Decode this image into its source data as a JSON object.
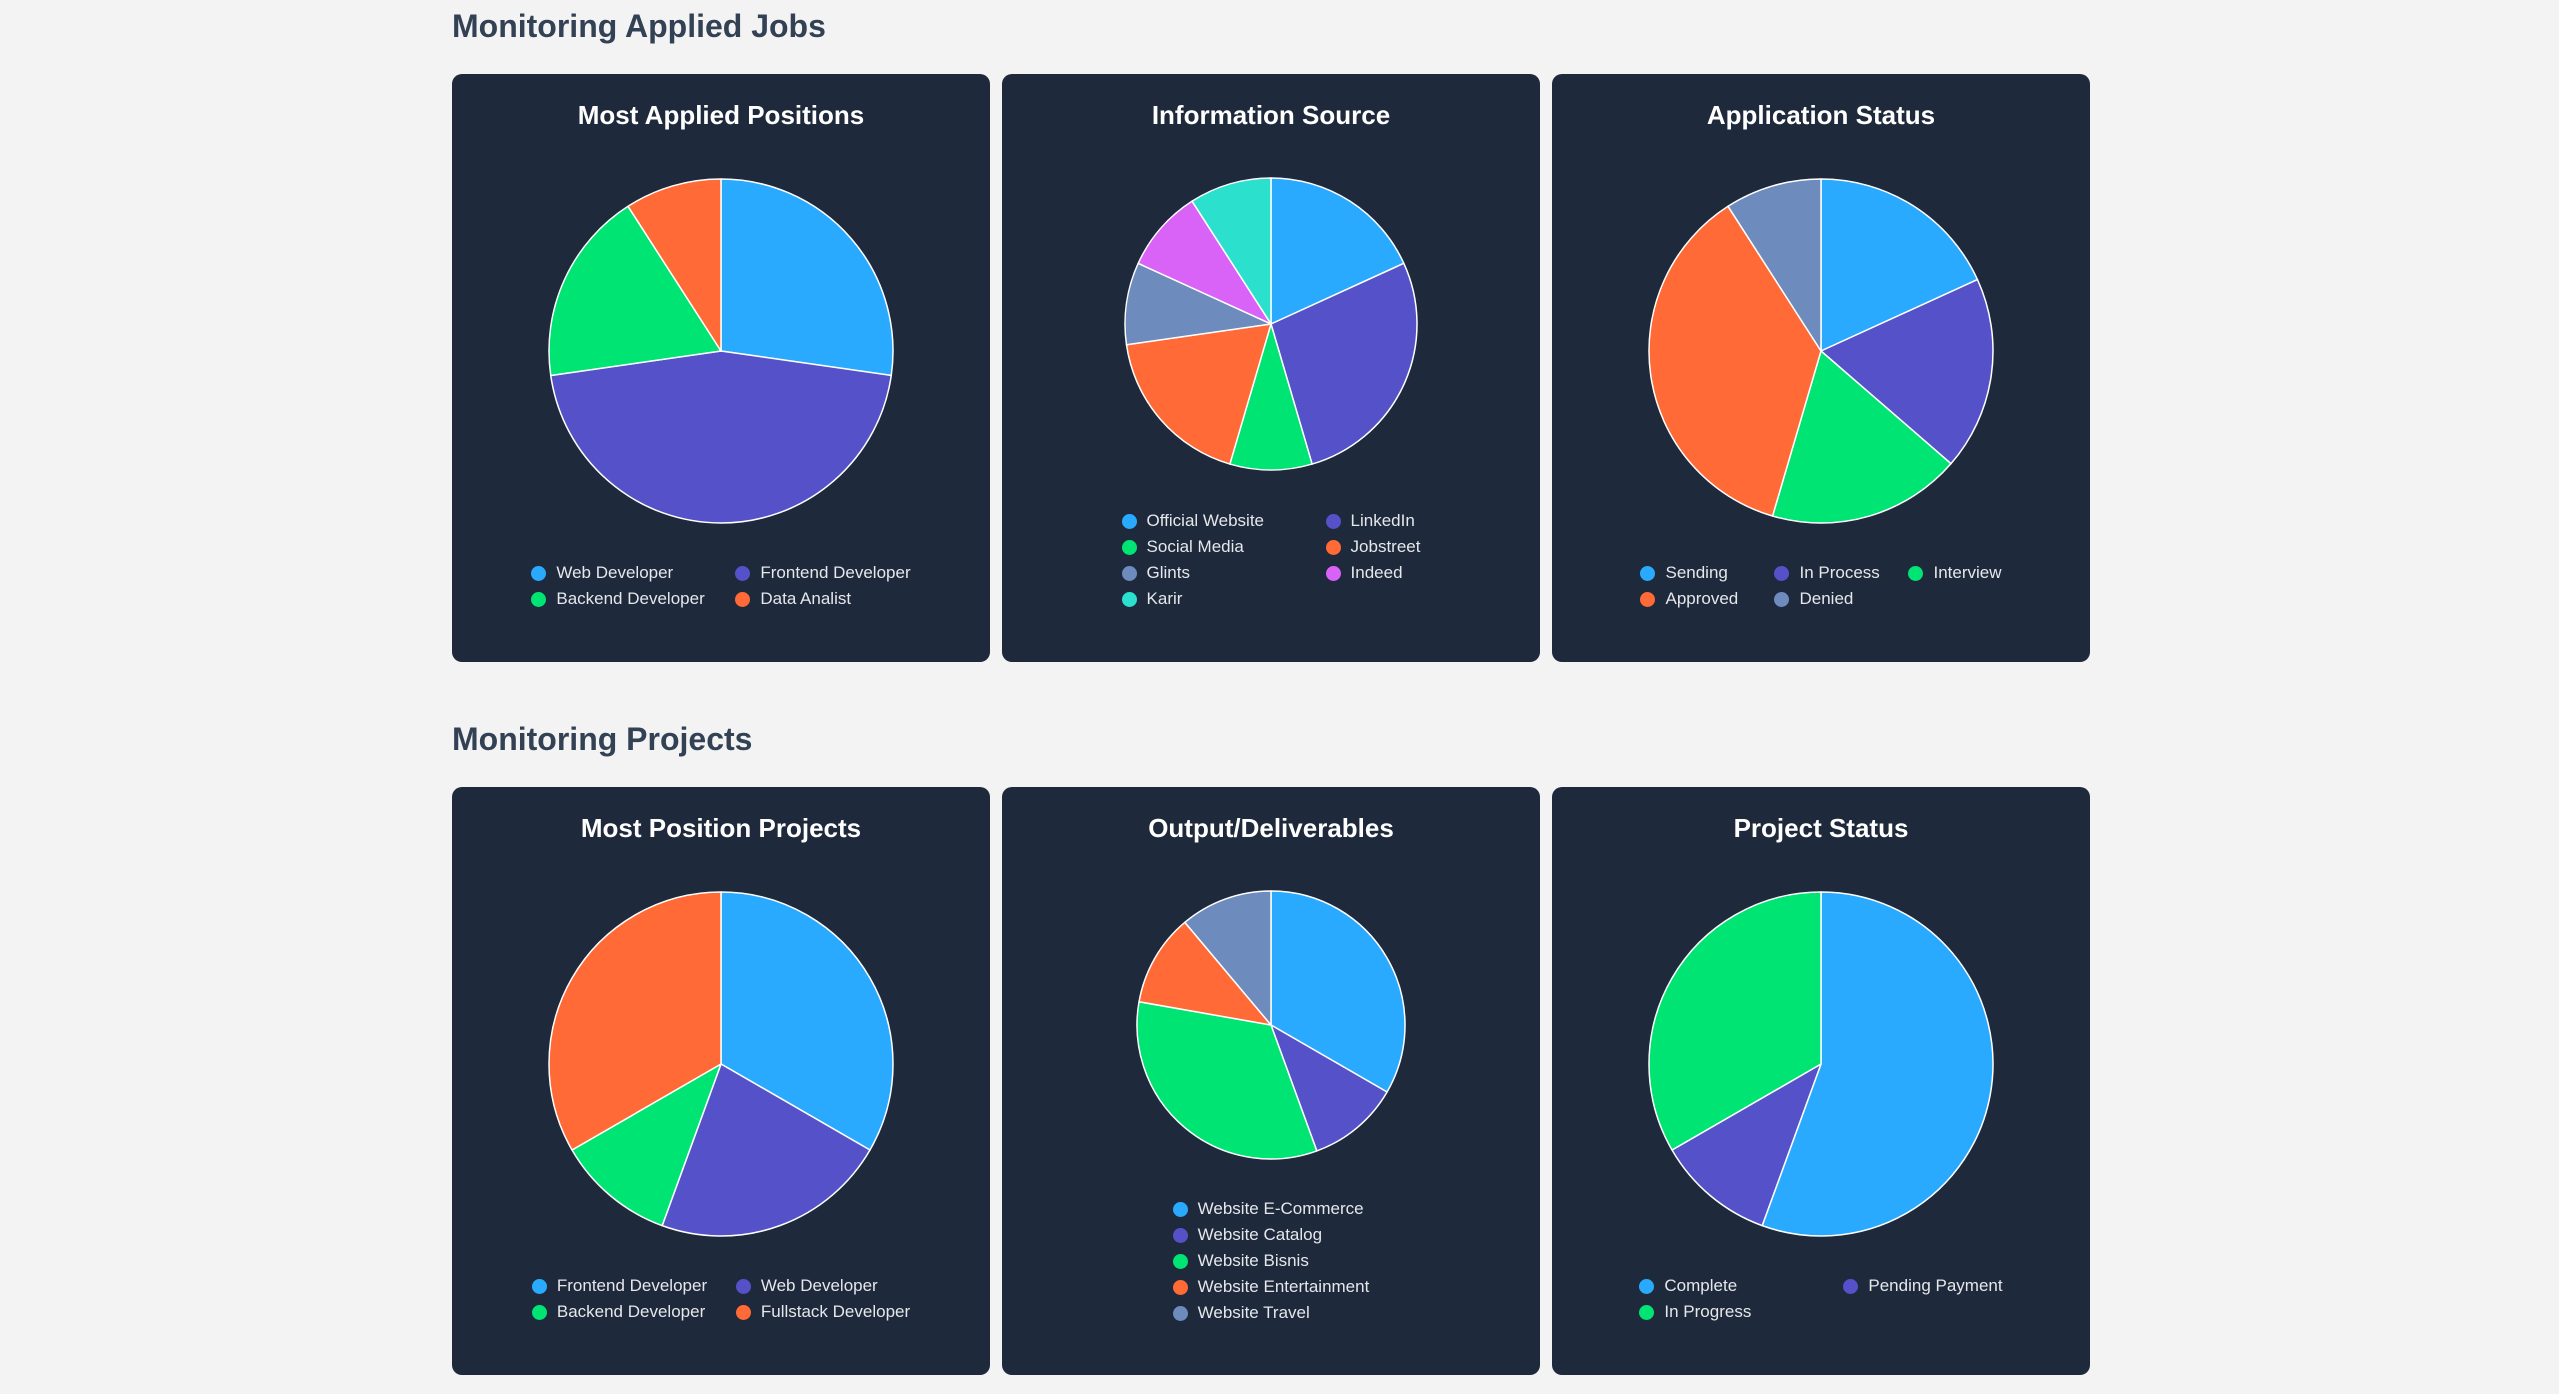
{
  "sections": [
    {
      "title": "Monitoring Applied Jobs",
      "charts": [
        {
          "title": "Most Applied Positions",
          "legend_columns": 2,
          "labels": [
            "Web Developer",
            "Frontend Developer",
            "Backend Developer",
            "Data Analist"
          ],
          "values": [
            3,
            5,
            2,
            1
          ],
          "colors": [
            "#2aaaff",
            "#5551c8",
            "#00e473",
            "#ff6a36"
          ]
        },
        {
          "title": "Information Source",
          "legend_columns": 2,
          "labels": [
            "Official Website",
            "LinkedIn",
            "Social Media",
            "Jobstreet",
            "Glints",
            "Indeed",
            "Karir"
          ],
          "values": [
            2,
            3,
            1,
            2,
            1,
            1,
            1
          ],
          "colors": [
            "#2aaaff",
            "#5551c8",
            "#00e473",
            "#ff6a36",
            "#6d8bbd",
            "#d863f6",
            "#2be0cd"
          ]
        },
        {
          "title": "Application Status",
          "legend_columns": 3,
          "labels": [
            "Sending",
            "In Process",
            "Interview",
            "Approved",
            "Denied"
          ],
          "values": [
            2,
            2,
            2,
            4,
            1
          ],
          "colors": [
            "#2aaaff",
            "#5551c8",
            "#00e473",
            "#ff6a36",
            "#6d8bbd"
          ]
        }
      ]
    },
    {
      "title": "Monitoring Projects",
      "charts": [
        {
          "title": "Most Position Projects",
          "legend_columns": 2,
          "labels": [
            "Frontend Developer",
            "Web Developer",
            "Backend Developer",
            "Fullstack Developer"
          ],
          "values": [
            3,
            2,
            1,
            3
          ],
          "colors": [
            "#2aaaff",
            "#5551c8",
            "#00e473",
            "#ff6a36"
          ]
        },
        {
          "title": "Output/Deliverables",
          "legend_columns": 1,
          "labels": [
            "Website E-Commerce",
            "Website Catalog",
            "Website Bisnis",
            "Website Entertainment",
            "Website Travel"
          ],
          "values": [
            3,
            1,
            3,
            1,
            1
          ],
          "colors": [
            "#2aaaff",
            "#5551c8",
            "#00e473",
            "#ff6a36",
            "#6d8bbd"
          ]
        },
        {
          "title": "Project Status",
          "legend_columns": 2,
          "labels": [
            "Complete",
            "Pending Payment",
            "In Progress"
          ],
          "values": [
            5,
            1,
            3
          ],
          "colors": [
            "#2aaaff",
            "#5551c8",
            "#00e473"
          ]
        }
      ]
    }
  ],
  "chart_data": [
    {
      "type": "pie",
      "title": "Most Applied Positions",
      "labels": [
        "Web Developer",
        "Frontend Developer",
        "Backend Developer",
        "Data Analist"
      ],
      "values": [
        3,
        5,
        2,
        1
      ]
    },
    {
      "type": "pie",
      "title": "Information Source",
      "labels": [
        "Official Website",
        "LinkedIn",
        "Social Media",
        "Jobstreet",
        "Glints",
        "Indeed",
        "Karir"
      ],
      "values": [
        2,
        3,
        1,
        2,
        1,
        1,
        1
      ]
    },
    {
      "type": "pie",
      "title": "Application Status",
      "labels": [
        "Sending",
        "In Process",
        "Interview",
        "Approved",
        "Denied"
      ],
      "values": [
        2,
        2,
        2,
        4,
        1
      ]
    },
    {
      "type": "pie",
      "title": "Most Position Projects",
      "labels": [
        "Frontend Developer",
        "Web Developer",
        "Backend Developer",
        "Fullstack Developer"
      ],
      "values": [
        3,
        2,
        1,
        3
      ]
    },
    {
      "type": "pie",
      "title": "Output/Deliverables",
      "labels": [
        "Website E-Commerce",
        "Website Catalog",
        "Website Bisnis",
        "Website Entertainment",
        "Website Travel"
      ],
      "values": [
        3,
        1,
        3,
        1,
        1
      ]
    },
    {
      "type": "pie",
      "title": "Project Status",
      "labels": [
        "Complete",
        "Pending Payment",
        "In Progress"
      ],
      "values": [
        5,
        1,
        3
      ]
    }
  ]
}
